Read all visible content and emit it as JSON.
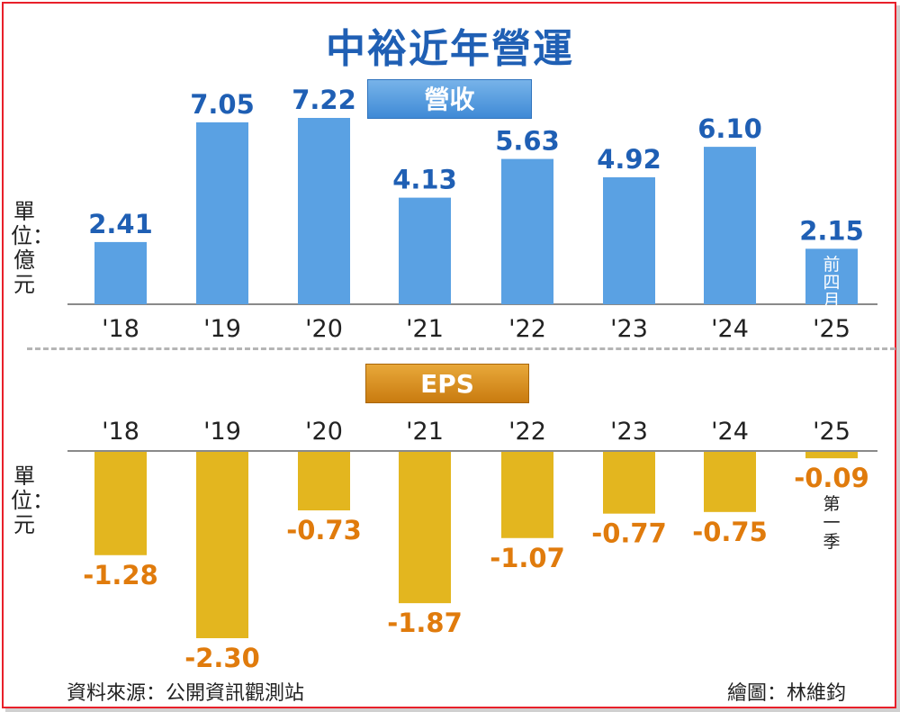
{
  "title": "中裕近年營運",
  "source": "資料來源：公開資訊觀測站",
  "credit": "繪圖：林維鈞",
  "colors": {
    "revenue_bar": "#5aa1e3",
    "eps_bar": "#e3b61f",
    "revenue_label": "#1f5fb4",
    "eps_label": "#e07b0c",
    "frame": "#e8202a"
  },
  "chart_data": [
    {
      "type": "bar",
      "tag": "營收",
      "unit": "單位：億元",
      "categories": [
        "'18",
        "'19",
        "'20",
        "'21",
        "'22",
        "'23",
        "'24",
        "'25"
      ],
      "values": [
        2.41,
        7.05,
        7.22,
        4.13,
        5.63,
        4.92,
        6.1,
        2.15
      ],
      "labels": [
        "2.41",
        "7.05",
        "7.22",
        "4.13",
        "5.63",
        "4.92",
        "6.10",
        "2.15"
      ],
      "last_bar_note": "前四月",
      "ylim": [
        0,
        7.22
      ]
    },
    {
      "type": "bar",
      "tag": "EPS",
      "unit": "單位：元",
      "categories": [
        "'18",
        "'19",
        "'20",
        "'21",
        "'22",
        "'23",
        "'24",
        "'25"
      ],
      "values": [
        -1.28,
        -2.3,
        -0.73,
        -1.87,
        -1.07,
        -0.77,
        -0.75,
        -0.09
      ],
      "labels": [
        "-1.28",
        "-2.30",
        "-0.73",
        "-1.87",
        "-1.07",
        "-0.77",
        "-0.75",
        "-0.09"
      ],
      "last_bar_note": "第一季",
      "ylim": [
        -2.3,
        0
      ]
    }
  ]
}
